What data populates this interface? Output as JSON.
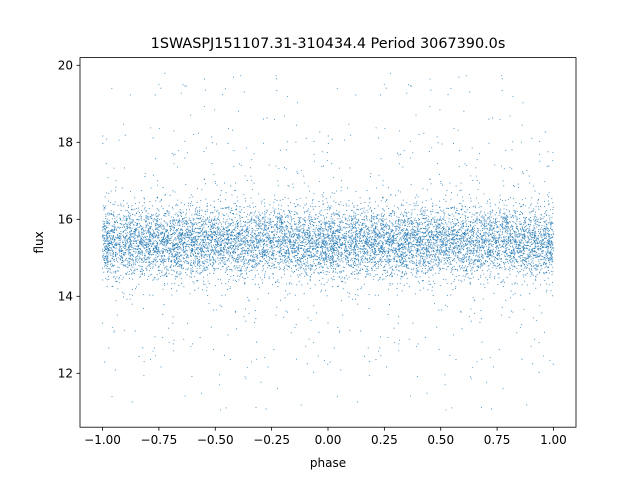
{
  "chart_data": {
    "type": "scatter",
    "title": "1SWASPJ151107.31-310434.4 Period 3067390.0s",
    "xlabel": "phase",
    "ylabel": "flux",
    "xlim": [
      -1.1,
      1.1
    ],
    "ylim": [
      10.6,
      20.2
    ],
    "xticks": [
      -1.0,
      -0.75,
      -0.5,
      -0.25,
      0.0,
      0.25,
      0.5,
      0.75,
      1.0
    ],
    "xtick_labels": [
      "−1.00",
      "−0.75",
      "−0.50",
      "−0.25",
      "0.00",
      "0.25",
      "0.50",
      "0.75",
      "1.00"
    ],
    "yticks": [
      12,
      14,
      16,
      18,
      20
    ],
    "ytick_labels": [
      "12",
      "14",
      "16",
      "18",
      "20"
    ],
    "grid": false,
    "marker_color": "#1f77b4",
    "point_summary": {
      "x_range": [
        -1.0,
        1.0
      ],
      "y_core_range": [
        14.5,
        16.3
      ],
      "y_core_center": 15.4,
      "y_full_range": [
        11.0,
        19.8
      ],
      "symmetric_about_zero": true
    }
  }
}
